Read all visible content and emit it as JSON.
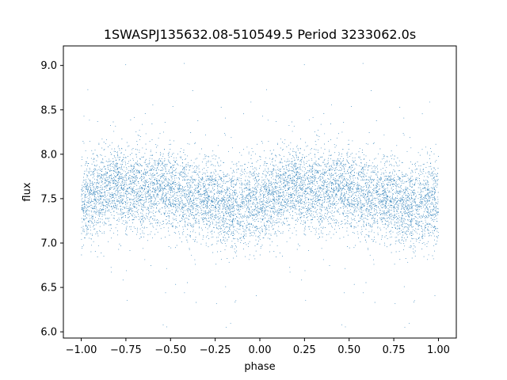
{
  "chart_data": {
    "type": "scatter",
    "title": "1SWASPJ135632.08-510549.5 Period 3233062.0s",
    "xlabel": "phase",
    "ylabel": "flux",
    "xlim": [
      -1.1,
      1.1
    ],
    "ylim": [
      5.93,
      9.22
    ],
    "xticks": [
      -1.0,
      -0.75,
      -0.5,
      -0.25,
      0.0,
      0.25,
      0.5,
      0.75,
      1.0
    ],
    "xtick_labels": [
      "−1.00",
      "−0.75",
      "−0.50",
      "−0.25",
      "0.00",
      "0.25",
      "0.50",
      "0.75",
      "1.00"
    ],
    "yticks": [
      6.0,
      6.5,
      7.0,
      7.5,
      8.0,
      8.5,
      9.0
    ],
    "ytick_labels": [
      "6.0",
      "6.5",
      "7.0",
      "7.5",
      "8.0",
      "8.5",
      "9.0"
    ],
    "grid": false,
    "marker_color": "#1f77b4",
    "phase_range": [
      -1.0,
      1.0
    ],
    "period_symmetric": true,
    "baseline_flux": 7.52,
    "typical_flux_range": [
      7.1,
      8.0
    ],
    "full_flux_range": [
      6.05,
      9.07
    ],
    "point_count": 9000,
    "flux_by_phase": {
      "phase": [
        0.0,
        0.05,
        0.1,
        0.15,
        0.2,
        0.25,
        0.3,
        0.35,
        0.4,
        0.45,
        0.5,
        0.55,
        0.6,
        0.65,
        0.7,
        0.75,
        0.8,
        0.85,
        0.9,
        0.95
      ],
      "median_flux": [
        7.45,
        7.55,
        7.55,
        7.6,
        7.68,
        7.6,
        7.6,
        7.55,
        7.6,
        7.62,
        7.58,
        7.55,
        7.5,
        7.5,
        7.52,
        7.48,
        7.42,
        7.4,
        7.4,
        7.48
      ]
    }
  }
}
